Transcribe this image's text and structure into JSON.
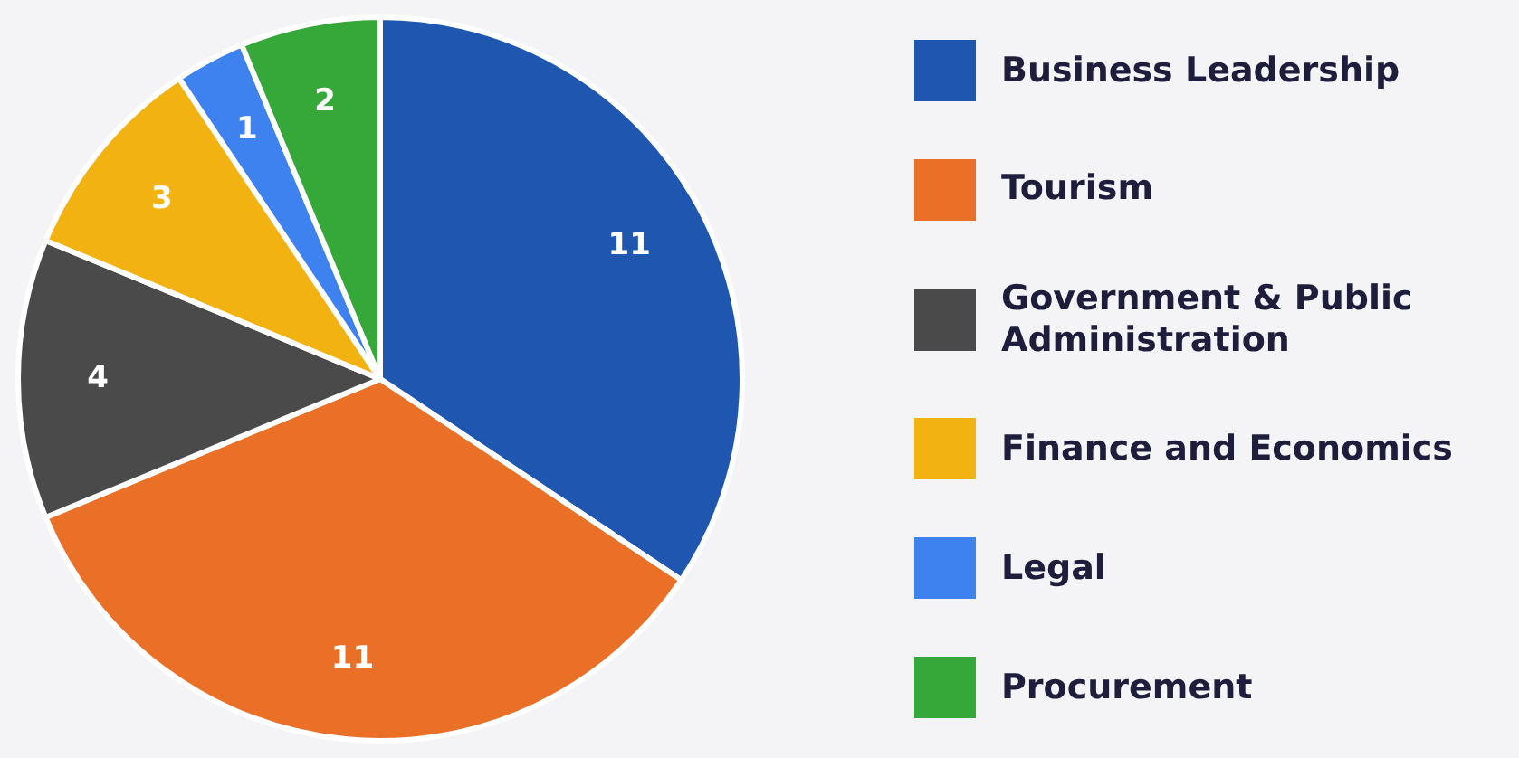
{
  "chart_data": {
    "type": "pie",
    "categories": [
      "Business Leadership",
      "Tourism",
      "Government & Public Administration",
      "Finance and Economics",
      "Legal",
      "Procurement"
    ],
    "values": [
      11,
      11,
      4,
      3,
      1,
      2
    ],
    "colors": [
      "#1f56b0",
      "#ea7028",
      "#4a4a4a",
      "#f2b212",
      "#3d82ee",
      "#36a83a"
    ],
    "data_labels": true,
    "legend": "right"
  }
}
